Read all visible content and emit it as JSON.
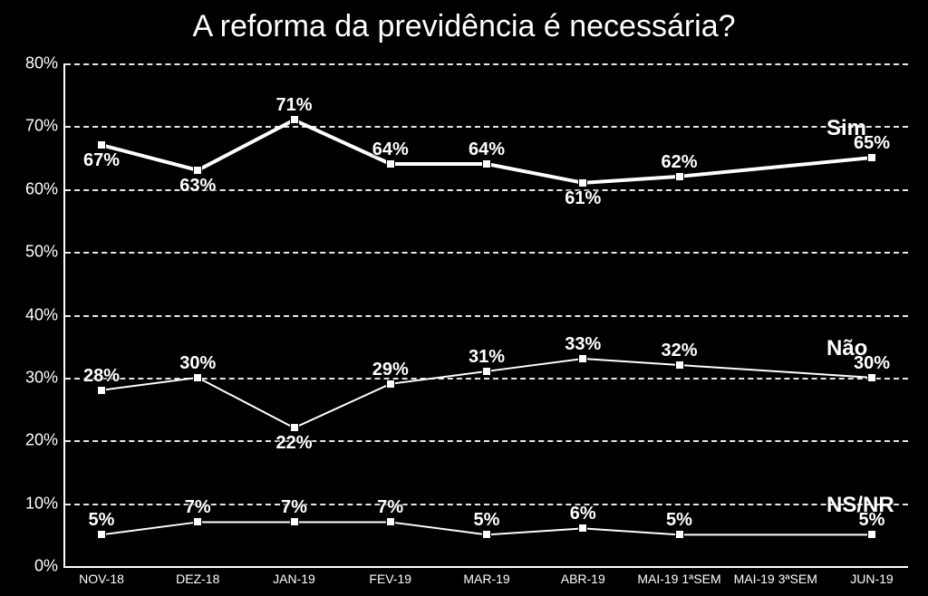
{
  "title": "A reforma da previdência é necessária?",
  "background_color": "#000000",
  "text_color": "#ffffff",
  "chart": {
    "type": "line",
    "ylim": [
      0,
      80
    ],
    "ytick_step": 10,
    "grid_color": "#ffffff",
    "title_fontsize": 34,
    "label_fontsize": 18,
    "datalabel_fontsize": 20,
    "legend_fontsize": 24,
    "categories": [
      "NOV-18",
      "DEZ-18",
      "JAN-19",
      "FEV-19",
      "MAR-19",
      "ABR-19",
      "MAI-19 1ªSEM",
      "MAI-19 3ªSEM",
      "JUN-19"
    ],
    "series": [
      {
        "name": "Sim",
        "color": "#ffffff",
        "line_width": 4,
        "values": [
          67,
          63,
          71,
          64,
          64,
          61,
          62,
          null,
          65
        ],
        "label_pos": [
          "below",
          "below",
          "above",
          "above",
          "above",
          "below",
          "above",
          null,
          "above"
        ]
      },
      {
        "name": "Não",
        "color": "#ffffff",
        "line_width": 2,
        "values": [
          28,
          30,
          22,
          29,
          31,
          33,
          32,
          null,
          30
        ],
        "label_pos": [
          "above",
          "above",
          "below",
          "above",
          "above",
          "above",
          "above",
          null,
          "above"
        ]
      },
      {
        "name": "NS/NR",
        "color": "#ffffff",
        "line_width": 2,
        "values": [
          5,
          7,
          7,
          7,
          5,
          6,
          5,
          null,
          5
        ],
        "label_pos": [
          "above",
          "above",
          "above",
          "above",
          "above",
          "above",
          "above",
          null,
          "above"
        ]
      }
    ]
  }
}
